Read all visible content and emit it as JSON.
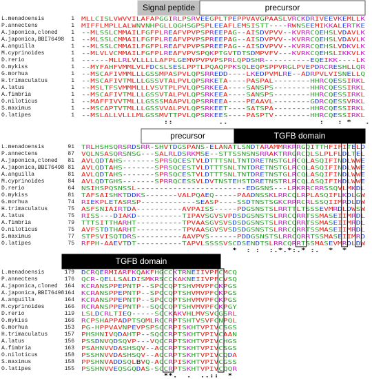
{
  "blocks": [
    {
      "header": [
        {
          "label": "Signal peptide"
        },
        {
          "label": "precursor"
        }
      ],
      "rows": [
        {
          "name": "L.menadoensis",
          "start": "1",
          "seq": "MLLCISLVWVVILAFAPGGIRLPSRVEEGPLTPEPPVAVGPAASLVRCKDRIVEEVKEMLLK"
        },
        {
          "name": "P.annectens",
          "start": "1",
          "seq": "MIFFLMPLLALWNVNHPGLLQGHSGPSPLEEAFLEMSISTT----RWNSEEMIKKALERTKE"
        },
        {
          "name": "A.japonica,cloned",
          "start": "1",
          "seq": "--MLSSLCMMAILFGFPLREAFVPVPSPREEPAG--AISDVPVV--KVRRCQEHSLVDAVLK"
        },
        {
          "name": "A.japonica,BBI76498",
          "start": "1",
          "seq": "--MLSSLCMMAILFGFPLREAFVPVPSPREEPAG--AISDVPVV--KVRRCQEHSLVDAVLK"
        },
        {
          "name": "A.anguilla",
          "start": "1",
          "seq": "--MLSSLCMMAILFGFPLREAFVPVPSPREEPAG--AISDVPVV--KVRRCQEHSLVDKVLK"
        },
        {
          "name": "M.cyprinoides",
          "start": "1",
          "seq": "--MLVLVCMMAILFGFPLREAFVPVSPQKPTGVTDTSDMPVFV---KVRKCQEHSLIKKVLK"
        },
        {
          "name": "D.rerio",
          "start": "1",
          "seq": "------MLLRLVLLLLLAFPLGEMVPVPVPSPRLQPDSHR----------EQEIKK----LK"
        },
        {
          "name": "O.mykiss",
          "start": "1",
          "seq": "--MYFAHFVMMLVLFDCSLSESLPPTLPQAQPPKSQLEQPSPPVRGLPVEPDRCRESHLLQR"
        },
        {
          "name": "G.morhua",
          "start": "1",
          "seq": "--MSCAFIVMMLLLGSSMPASPVLQPSRREDD----LKEDPVMLRE--ADRPVLVISNELLQ"
        },
        {
          "name": "H.trimaculatus",
          "start": "1",
          "seq": "--MSCAFIVTMLLLGSSVTALPVLQPSRKETA----PASPAL--------HHRCQESSIRKL"
        },
        {
          "name": "A.latus",
          "start": "1",
          "seq": "--MSLTFSVMMMLLLVSVTPLPVLQPSRKEEA----SANSPS--------HHRCQESSIRKL"
        },
        {
          "name": "A.fimbria",
          "start": "1",
          "seq": "--MSCAFIVTMLLLGSSVTALPVLQPSRKEEA----SANSPS--------HHRCQESSIRKL"
        },
        {
          "name": "O.niloticus",
          "start": "1",
          "seq": "--MAFFIVVTMLLLGSSSMAAPVLQPSRREEA----PEAAVL--------GDRCQESSVRKL"
        },
        {
          "name": "S.maximus",
          "start": "1",
          "seq": "--MSCAPTVTMLLLGSSVVALPVLQPSRKEET----SATSPA--------HHRCQESSIRKL"
        },
        {
          "name": "O.latipes",
          "start": "1",
          "seq": "--MSLALLVLLLMLGSSMVTTPVLQPSRKEES----PASPTV--------HHRCQESSIRKL"
        }
      ],
      "consensus": "                  ::          ..                    :   : *   ."
    },
    {
      "header": [
        {
          "label": "precursor"
        },
        {
          "label": "TGFB domain"
        }
      ],
      "rows": [
        {
          "name": "L.menadoensis",
          "start": "91",
          "seq": "TRLHSHSQRSRDSRR-SHVTDGSPANS-ELANATLSNDTARAMMRKRRGQITTHFIFITELD"
        },
        {
          "name": "P.annectens",
          "start": "87",
          "seq": "VQLNSASQRSNSG---SALRLDSRKMSE--STTSSNSNSRRAKTRRGRCQLSLPLFLDLTEL"
        },
        {
          "name": "A.japonica,cloned",
          "start": "81",
          "seq": "AVLQDTAHS-------SPRSQCESTVLDTTTSNLTNTDRETNSTGLRCQLASQIFINDLWWE"
        },
        {
          "name": "A.japonica,BBI76498",
          "start": "81",
          "seq": "AVLQDTAHS-------SPRSQCESTVLDTTTSNLTNTDRETNSTGLRCQLASQIFINDLWWE"
        },
        {
          "name": "A.anguilla",
          "start": "81",
          "seq": "AVLQDTAHS-------SPRSQCESTVLDTTTSNLTNTDRETNSTGLRCQLASQIFINDLWWE"
        },
        {
          "name": "M.cyprinoides",
          "start": "84",
          "seq": "AVLQDTGHS-------SPRRQCESSVLDVTNSTEHSTDRETNSTRLRCQLASQIFIKDLWWE"
        },
        {
          "name": "D.rerio",
          "start": "64",
          "seq": "NSIHSPQSNSSL------------------------EDGSNS---LRKRRCRRSSQVLMKDL"
        },
        {
          "name": "O.mykiss",
          "start": "81",
          "seq": "TAFSAISHKTDDKS-------VALPQAEQ-----PAADNSSKLRRCQLRPLASQIFLKDLGW"
        },
        {
          "name": "G.morhua",
          "start": "74",
          "seq": "RIEKPLETASRSP------------SEASP----SSDTNSTSGKCRRRCRLSSQIIMRDLDW"
        },
        {
          "name": "H.trimaculatus",
          "start": "75",
          "seq": "ASFSNIAIRTDA----------AVPAISS-----PDGSNSTSLRRTTLTSSSEVMRDLDWSW"
        },
        {
          "name": "A.latus",
          "start": "75",
          "seq": "RISS---DIAKD----------TIPAVSGVSVPDSDGSNSTSLRRCQRRTSSMASEIIMRDL"
        },
        {
          "name": "A.fimbria",
          "start": "79",
          "seq": "TTTSITTHARHT----------TPVAASGVSVSDSDGSNSTSLRRCQRRTSSMASEIIMRDL"
        },
        {
          "name": "O.niloticus",
          "start": "75",
          "seq": "AVFSTDTHARHT----------TPVAASGVSVSDSDGSNSTSLRRCQRRTSSMASEIIMRDL"
        },
        {
          "name": "S.maximus",
          "start": "77",
          "seq": "STPSVISQTDRS----------AAVPVS------PDDGSNSTSLRRCQRRTSSMASEIIMRD"
        },
        {
          "name": "O.latipes",
          "start": "75",
          "seq": "RFPH-AAEVTDT----------TAPVLSSSSVSCDSENDTSLRRCQRRTSSMASEVMRDLDW"
        }
      ],
      "consensus": "                                 *  : :  :.*.*:.* :.  *  *"
    },
    {
      "header": [
        {
          "label": "TGFB domain"
        }
      ],
      "rows": [
        {
          "name": "L.menadoensis",
          "start": "179",
          "seq": "DCRQERMIARFKQAKFHGCCKTRNEIIVPFCMCQ"
        },
        {
          "name": "P.annectens",
          "start": "176",
          "seq": "QCR-QELLSALDISMKRSCCKAKNEIIVPFCVSQ"
        },
        {
          "name": "A.japonica,cloned",
          "start": "164",
          "seq": "KCRANSPPEPNTP--SPCCQPTSHVMVPFCKPGS"
        },
        {
          "name": "A.japonica,BBI76498",
          "start": "164",
          "seq": "KCRANSPPEPNTP--SPCCQPTSHVMVPFCKPGS"
        },
        {
          "name": "A.anguilla",
          "start": "164",
          "seq": "KCRANSPPEPNTP--SPCCQPTSHVMVPFCKPGS"
        },
        {
          "name": "M.cyprinoides",
          "start": "166",
          "seq": "RCRANSPPEPNTP--SQCCQPTSHVMVPFCKPGY"
        },
        {
          "name": "D.rerio",
          "start": "119",
          "seq": "LSLDCRLTIEQ-----SCCKAKVHLMVSVCGSRL"
        },
        {
          "name": "O.mykiss",
          "start": "166",
          "seq": "RCPSHAPPADPTSQMLRCCRPTSHTVSVFCNPQL"
        },
        {
          "name": "G.morhua",
          "start": "153",
          "seq": "PG-HPPVAVNPEVPSPSCCRPISKHTVPIVCSGS"
        },
        {
          "name": "H.trimaculatus",
          "start": "157",
          "seq": "PHSHNIVQDAHTP--SQCCRPTSKHTVPIVCAAN"
        },
        {
          "name": "A.latus",
          "start": "156",
          "seq": "PSSDNVQDSQVP---VQCCRPTSKHTVPIVCHGS"
        },
        {
          "name": "A.fimbria",
          "start": "163",
          "seq": "PSAHNVVDASHSQV--ACCRPTSKHTVPIVCSGS"
        },
        {
          "name": "O.niloticus",
          "start": "158",
          "seq": "PSSHNVVDASHSQV--ACCRPTSKHTVPIVCQDA"
        },
        {
          "name": "S.maximus",
          "start": "158",
          "seq": "PPSHNVADDSQLBVQ-ACCRPISKHTVPIVCGSS"
        },
        {
          "name": "O.latipes",
          "start": "155",
          "seq": "PSSHNVVEQSGQDAS-SCCRPTSKHTVPIVCQQR"
        }
      ],
      "consensus": "                  **.  .  ..::  *"
    }
  ]
}
